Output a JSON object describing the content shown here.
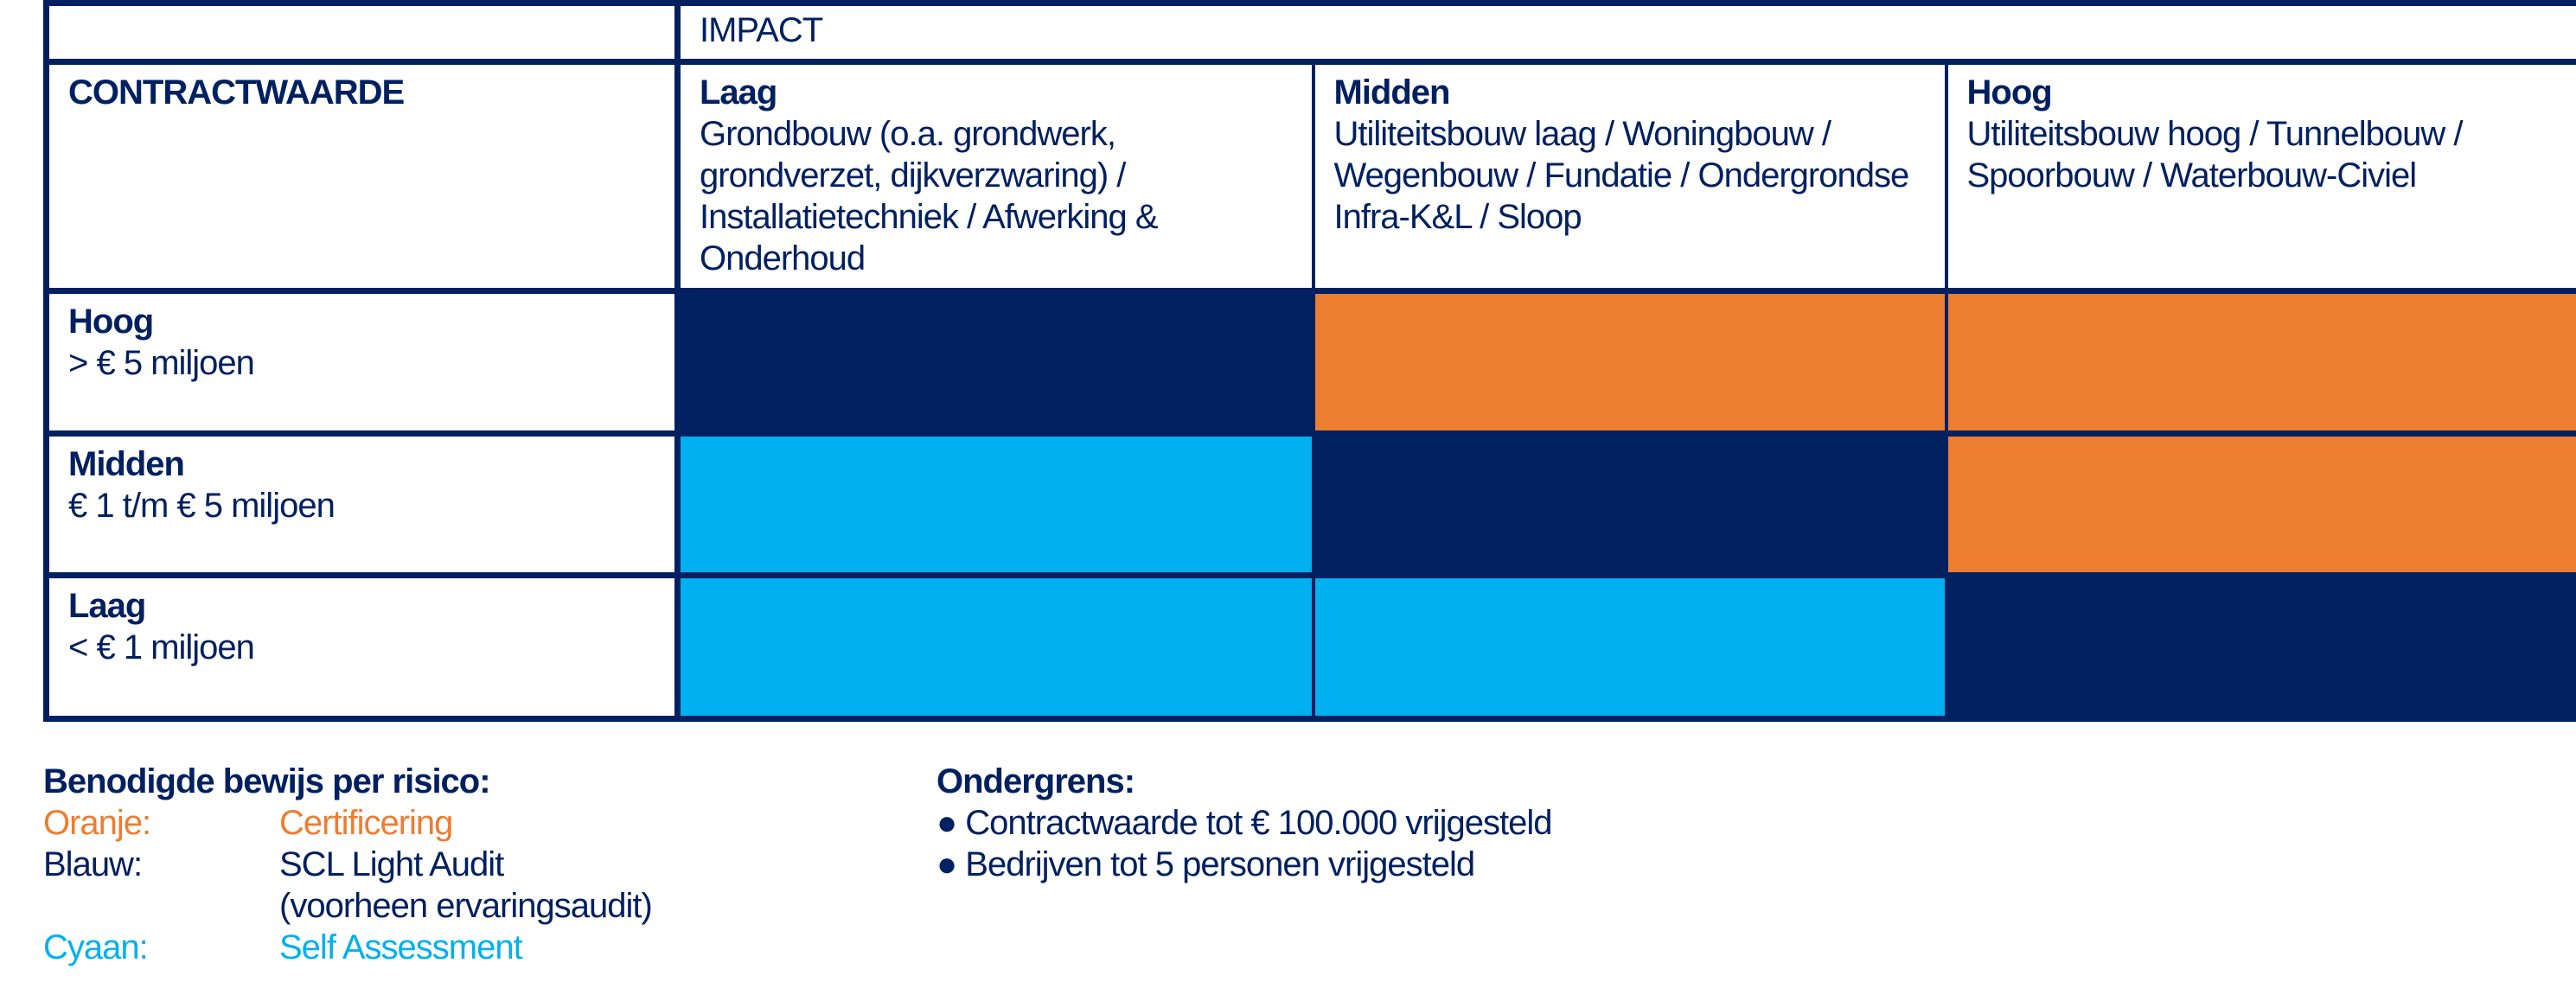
{
  "matrix": {
    "impact_label": "IMPACT",
    "row_axis_label": "CONTRACTWAARDE",
    "columns": [
      {
        "level": "Laag",
        "description": "Grondbouw (o.a. grondwerk, grondverzet, dijkverzwaring) / Installatietechniek / Afwerking & Onderhoud"
      },
      {
        "level": "Midden",
        "description": "Utiliteitsbouw laag / Woningbouw / Wegenbouw / Fundatie / Ondergrondse Infra-K&L / Sloop"
      },
      {
        "level": "Hoog",
        "description": "Utiliteitsbouw hoog / Tunnelbouw / Spoorbouw / Waterbouw-Civiel"
      }
    ],
    "rows": [
      {
        "level": "Hoog",
        "range": "> € 5 miljoen",
        "cells": [
          "navy",
          "orange",
          "orange"
        ]
      },
      {
        "level": "Midden",
        "range": "€ 1 t/m € 5 miljoen",
        "cells": [
          "cyan",
          "navy",
          "orange"
        ]
      },
      {
        "level": "Laag",
        "range": "< € 1 miljoen",
        "cells": [
          "cyan",
          "cyan",
          "navy"
        ]
      }
    ],
    "colors": {
      "navy": "#002060",
      "orange": "#ED7D31",
      "cyan": "#00B0F0"
    }
  },
  "legend": {
    "title": "Benodigde bewijs per risico:",
    "items": [
      {
        "label": "Oranje:",
        "value": "Certificering",
        "color": "#ED7D31"
      },
      {
        "label": "Blauw:",
        "value": "SCL Light Audit",
        "value2": "(voorheen ervaringsaudit)",
        "color": "#002060"
      },
      {
        "label": "Cyaan:",
        "value": "Self Assessment",
        "color": "#00B0F0"
      }
    ]
  },
  "threshold": {
    "title": "Ondergrens:",
    "bullets": [
      "Contractwaarde tot € 100.000 vrijgesteld",
      "Bedrijven tot 5 personen vrijgesteld"
    ]
  }
}
